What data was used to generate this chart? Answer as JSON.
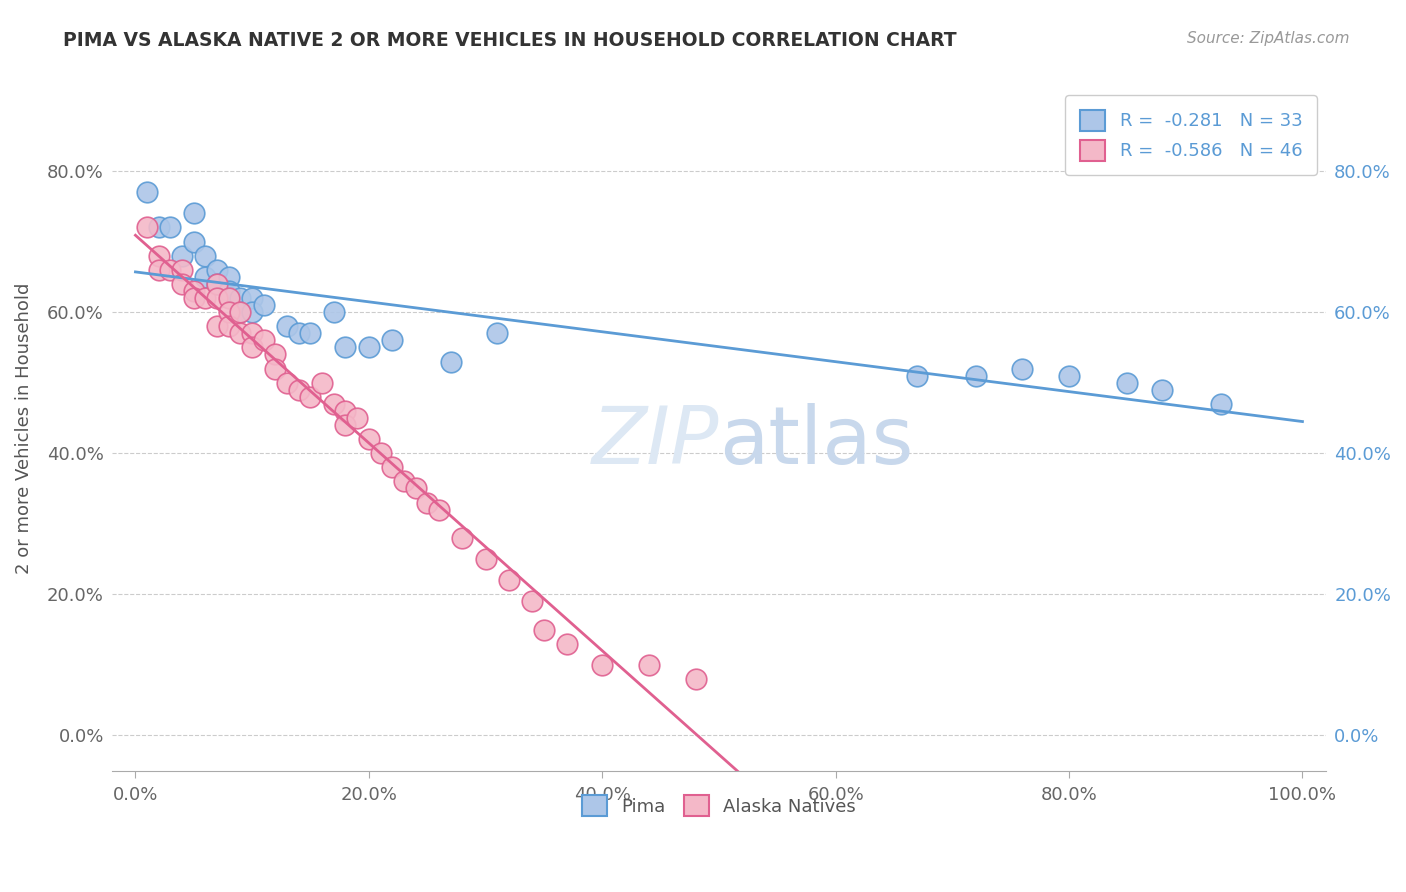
{
  "title": "PIMA VS ALASKA NATIVE 2 OR MORE VEHICLES IN HOUSEHOLD CORRELATION CHART",
  "source": "Source: ZipAtlas.com",
  "ylabel": "2 or more Vehicles in Household",
  "legend_bottom": [
    "Pima",
    "Alaska Natives"
  ],
  "pima_R": -0.281,
  "pima_N": 33,
  "alaska_R": -0.586,
  "alaska_N": 46,
  "pima_color": "#adc6e8",
  "alaska_color": "#f4b8c8",
  "pima_edge_color": "#5b9bd5",
  "alaska_edge_color": "#e06090",
  "pima_line_color": "#5b9bd5",
  "alaska_line_color": "#e06090",
  "background_color": "#ffffff",
  "grid_color": "#cccccc",
  "pima_x": [
    0.01,
    0.02,
    0.03,
    0.04,
    0.05,
    0.05,
    0.06,
    0.06,
    0.07,
    0.07,
    0.08,
    0.08,
    0.09,
    0.09,
    0.1,
    0.1,
    0.11,
    0.13,
    0.14,
    0.15,
    0.17,
    0.18,
    0.2,
    0.22,
    0.27,
    0.31,
    0.67,
    0.72,
    0.76,
    0.8,
    0.85,
    0.88,
    0.93
  ],
  "pima_y": [
    0.77,
    0.72,
    0.72,
    0.68,
    0.74,
    0.7,
    0.68,
    0.65,
    0.66,
    0.64,
    0.65,
    0.63,
    0.62,
    0.6,
    0.62,
    0.6,
    0.61,
    0.58,
    0.57,
    0.57,
    0.6,
    0.55,
    0.55,
    0.56,
    0.53,
    0.57,
    0.51,
    0.51,
    0.52,
    0.51,
    0.5,
    0.49,
    0.47
  ],
  "alaska_x": [
    0.01,
    0.02,
    0.02,
    0.03,
    0.04,
    0.04,
    0.05,
    0.05,
    0.06,
    0.07,
    0.07,
    0.07,
    0.08,
    0.08,
    0.08,
    0.09,
    0.09,
    0.1,
    0.1,
    0.11,
    0.12,
    0.12,
    0.13,
    0.14,
    0.15,
    0.16,
    0.17,
    0.18,
    0.18,
    0.19,
    0.2,
    0.21,
    0.22,
    0.23,
    0.24,
    0.25,
    0.26,
    0.28,
    0.3,
    0.32,
    0.34,
    0.35,
    0.37,
    0.4,
    0.44,
    0.48
  ],
  "alaska_y": [
    0.72,
    0.68,
    0.66,
    0.66,
    0.66,
    0.64,
    0.63,
    0.62,
    0.62,
    0.64,
    0.62,
    0.58,
    0.62,
    0.6,
    0.58,
    0.6,
    0.57,
    0.57,
    0.55,
    0.56,
    0.54,
    0.52,
    0.5,
    0.49,
    0.48,
    0.5,
    0.47,
    0.46,
    0.44,
    0.45,
    0.42,
    0.4,
    0.38,
    0.36,
    0.35,
    0.33,
    0.32,
    0.28,
    0.25,
    0.22,
    0.19,
    0.15,
    0.13,
    0.1,
    0.1,
    0.08
  ],
  "xlim": [
    -0.02,
    1.02
  ],
  "ylim": [
    -0.05,
    0.92
  ],
  "x_ticks": [
    0.0,
    0.2,
    0.4,
    0.6,
    0.8,
    1.0
  ],
  "x_tick_labels": [
    "0.0%",
    "20.0%",
    "40.0%",
    "60.0%",
    "80.0%",
    "100.0%"
  ],
  "y_ticks": [
    0.0,
    0.2,
    0.4,
    0.6,
    0.8
  ],
  "y_tick_labels": [
    "0.0%",
    "20.0%",
    "40.0%",
    "60.0%",
    "80.0%"
  ]
}
